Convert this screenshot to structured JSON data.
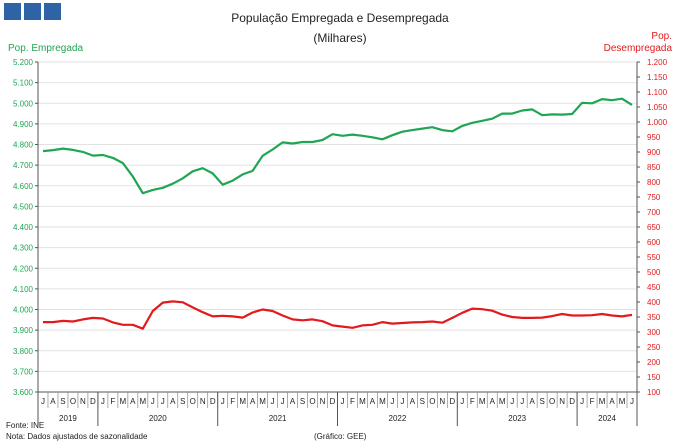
{
  "header": {
    "logo_blocks": 3,
    "logo_color": "#2e64a6"
  },
  "footer": {
    "source": "Fonte: INE",
    "note": "Nota: Dados ajustados de sazonalidade",
    "credit": "(Gráfico: GEE)"
  },
  "chart_data": {
    "type": "line",
    "title": "População Empregada e Desempregada",
    "subtitle": "(Milhares)",
    "ylabel_left": "Pop. Empregada",
    "ylabel_right_lines": [
      "Pop.",
      "Desempregada"
    ],
    "ylim_left": [
      3.6,
      5.2
    ],
    "ylim_right": [
      100,
      1200
    ],
    "y_ticks_left": [
      "3.600",
      "3.700",
      "3.800",
      "3.900",
      "4.000",
      "4.100",
      "4.200",
      "4.300",
      "4.400",
      "4.500",
      "4.600",
      "4.700",
      "4.800",
      "4.900",
      "5.000",
      "5.100",
      "5.200"
    ],
    "y_ticks_right": [
      "100",
      "150",
      "200",
      "250",
      "300",
      "350",
      "400",
      "450",
      "500",
      "550",
      "600",
      "650",
      "700",
      "750",
      "800",
      "850",
      "900",
      "950",
      "1.000",
      "1.050",
      "1.100",
      "1.150",
      "1.200"
    ],
    "grid": "horizontal",
    "x": [
      "J",
      "A",
      "S",
      "O",
      "N",
      "D",
      "J",
      "F",
      "M",
      "A",
      "M",
      "J",
      "J",
      "A",
      "S",
      "O",
      "N",
      "D",
      "J",
      "F",
      "M",
      "A",
      "M",
      "J",
      "J",
      "A",
      "S",
      "O",
      "N",
      "D",
      "J",
      "F",
      "M",
      "A",
      "M",
      "J",
      "J",
      "A",
      "S",
      "O",
      "N",
      "D",
      "J",
      "F",
      "M",
      "A",
      "M",
      "J",
      "J",
      "A",
      "S",
      "O",
      "N",
      "D",
      "J",
      "F",
      "M",
      "A",
      "M",
      "J"
    ],
    "years": [
      {
        "label": "2019",
        "months": 6
      },
      {
        "label": "2020",
        "months": 12
      },
      {
        "label": "2021",
        "months": 12
      },
      {
        "label": "2022",
        "months": 12
      },
      {
        "label": "2023",
        "months": 12
      },
      {
        "label": "2024",
        "months": 6
      }
    ],
    "series": [
      {
        "name": "Pop. Empregada",
        "axis": "left",
        "color": "#1fa652",
        "values": [
          4.768,
          4.773,
          4.78,
          4.774,
          4.764,
          4.746,
          4.749,
          4.735,
          4.71,
          4.645,
          4.564,
          4.58,
          4.59,
          4.61,
          4.636,
          4.67,
          4.685,
          4.66,
          4.605,
          4.625,
          4.655,
          4.672,
          4.745,
          4.776,
          4.81,
          4.805,
          4.812,
          4.812,
          4.822,
          4.85,
          4.842,
          4.848,
          4.842,
          4.835,
          4.825,
          4.845,
          4.862,
          4.87,
          4.877,
          4.884,
          4.87,
          4.864,
          4.89,
          4.905,
          4.915,
          4.925,
          4.95,
          4.95,
          4.965,
          4.97,
          4.942,
          4.946,
          4.945,
          4.948,
          5.002,
          5.0,
          5.02,
          5.015,
          5.022,
          4.992
        ]
      },
      {
        "name": "Pop. Desempregada",
        "axis": "right",
        "color": "#e31a1c",
        "values": [
          333,
          333,
          337,
          335,
          342,
          347,
          345,
          332,
          324,
          324,
          311,
          370,
          398,
          402,
          399,
          382,
          366,
          352,
          354,
          352,
          348,
          365,
          375,
          370,
          355,
          342,
          339,
          342,
          336,
          322,
          318,
          314,
          322,
          324,
          333,
          328,
          330,
          332,
          333,
          335,
          331,
          347,
          364,
          378,
          376,
          371,
          358,
          350,
          347,
          347,
          348,
          353,
          360,
          355,
          355,
          356,
          360,
          355,
          352,
          357
        ]
      }
    ]
  }
}
